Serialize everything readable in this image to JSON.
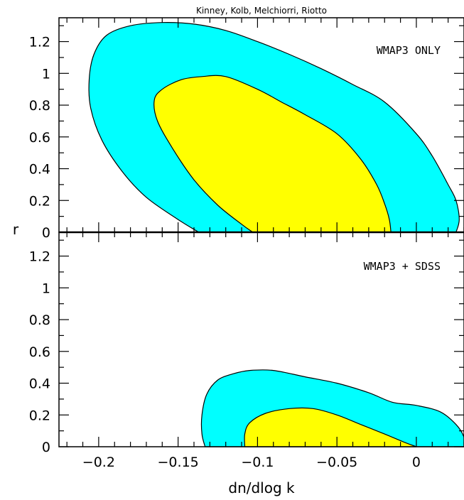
{
  "chart_data": {
    "type": "area",
    "title": "Kinney, Kolb, Melchiorri, Riotto",
    "xlabel": "dn/dlog k",
    "ylabel": "r",
    "xlim": [
      -0.225,
      0.03
    ],
    "x_ticks": [
      -0.2,
      -0.15,
      -0.1,
      -0.05,
      0
    ],
    "x_tick_labels": [
      "−0.2",
      "−0.15",
      "−0.1",
      "−0.05",
      "0"
    ],
    "colors": {
      "outer": "#00ffff",
      "inner": "#ffff00",
      "line": "#000000"
    },
    "panels": [
      {
        "label": "WMAP3 ONLY",
        "ylim": [
          0,
          1.35
        ],
        "y_ticks": [
          0,
          0.2,
          0.4,
          0.6,
          0.8,
          1,
          1.2
        ],
        "y_tick_labels": [
          "0",
          "0.2",
          "0.4",
          "0.6",
          "0.8",
          "1",
          "1.2"
        ],
        "series": [
          {
            "level": "outer",
            "x": [
              -0.137,
              -0.15,
              -0.17,
              -0.185,
              -0.198,
              -0.205,
              -0.206,
              -0.203,
              -0.195,
              -0.18,
              -0.16,
              -0.14,
              -0.12,
              -0.1,
              -0.08,
              -0.06,
              -0.04,
              -0.02,
              0.0,
              0.01,
              0.02,
              0.025,
              0.027,
              0.025
            ],
            "y": [
              0,
              0.08,
              0.22,
              0.38,
              0.58,
              0.78,
              0.96,
              1.12,
              1.24,
              1.3,
              1.32,
              1.31,
              1.27,
              1.2,
              1.12,
              1.03,
              0.93,
              0.82,
              0.62,
              0.48,
              0.3,
              0.2,
              0.08,
              0
            ]
          },
          {
            "level": "inner",
            "x": [
              -0.103,
              -0.11,
              -0.125,
              -0.14,
              -0.153,
              -0.163,
              -0.165,
              -0.16,
              -0.148,
              -0.135,
              -0.12,
              -0.1,
              -0.085,
              -0.07,
              -0.05,
              -0.035,
              -0.025,
              -0.02,
              -0.017,
              -0.016
            ],
            "y": [
              0,
              0.05,
              0.17,
              0.33,
              0.52,
              0.7,
              0.83,
              0.9,
              0.96,
              0.98,
              0.98,
              0.9,
              0.82,
              0.74,
              0.62,
              0.46,
              0.3,
              0.18,
              0.08,
              0
            ]
          }
        ]
      },
      {
        "label": "WMAP3 + SDSS",
        "ylim": [
          0,
          1.35
        ],
        "y_ticks": [
          0,
          0.2,
          0.4,
          0.6,
          0.8,
          1,
          1.2
        ],
        "y_tick_labels": [
          "0",
          "0.2",
          "0.4",
          "0.6",
          "0.8",
          "1",
          "1.2"
        ],
        "series": [
          {
            "level": "outer",
            "x": [
              -0.133,
              -0.135,
              -0.135,
              -0.132,
              -0.125,
              -0.115,
              -0.105,
              -0.09,
              -0.07,
              -0.05,
              -0.03,
              -0.015,
              0.0,
              0.015,
              0.025,
              0.03,
              0.03
            ],
            "y": [
              0,
              0.08,
              0.2,
              0.33,
              0.42,
              0.46,
              0.48,
              0.48,
              0.44,
              0.4,
              0.34,
              0.28,
              0.26,
              0.22,
              0.14,
              0.06,
              0
            ]
          },
          {
            "level": "inner",
            "x": [
              -0.108,
              -0.108,
              -0.105,
              -0.095,
              -0.08,
              -0.065,
              -0.05,
              -0.035,
              -0.02,
              -0.008,
              0.0
            ],
            "y": [
              0,
              0.08,
              0.15,
              0.21,
              0.24,
              0.24,
              0.2,
              0.14,
              0.08,
              0.03,
              0
            ]
          }
        ]
      }
    ]
  }
}
